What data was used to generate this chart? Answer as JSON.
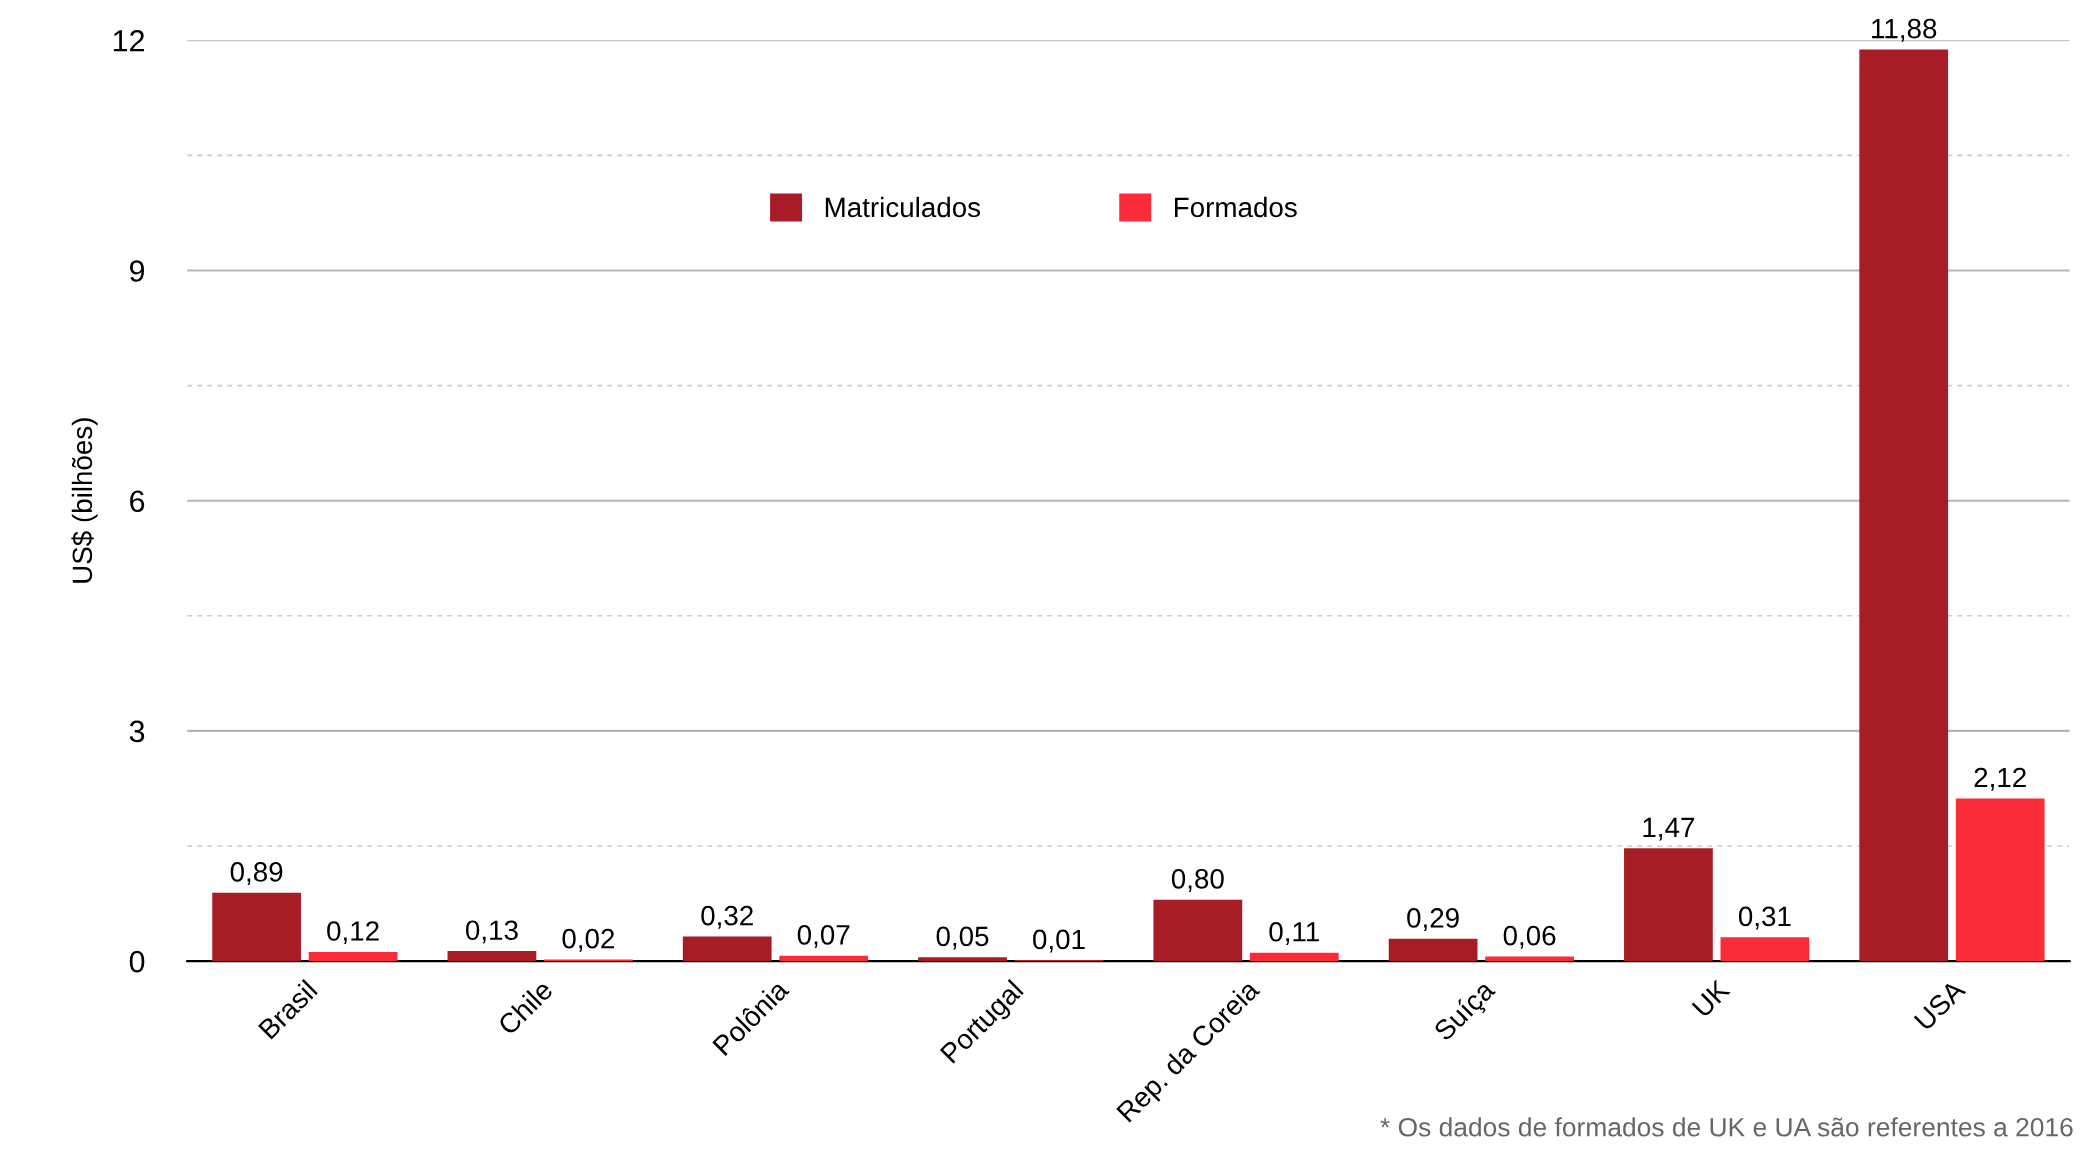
{
  "chart_data": {
    "type": "bar",
    "ylabel": "US$ (bilhões)",
    "categories": [
      "Brasil",
      "Chile",
      "Polônia",
      "Portugal",
      "Rep. da Coreia",
      "Suíça",
      "UK",
      "USA"
    ],
    "series": [
      {
        "name": "Matriculados",
        "color": "#a71d26",
        "values": [
          0.89,
          0.13,
          0.32,
          0.05,
          0.8,
          0.29,
          1.47,
          11.88
        ],
        "value_labels": [
          "0,89",
          "0,13",
          "0,32",
          "0,05",
          "0,80",
          "0,29",
          "1,47",
          "11,88"
        ]
      },
      {
        "name": "Formados",
        "color": "#fb2c3a",
        "values": [
          0.12,
          0.02,
          0.07,
          0.01,
          0.11,
          0.06,
          0.31,
          2.12
        ],
        "value_labels": [
          "0,12",
          "0,02",
          "0,07",
          "0,01",
          "0,11",
          "0,06",
          "0,31",
          "2,12"
        ]
      }
    ],
    "ylim": [
      0,
      12
    ],
    "yticks": [
      0,
      {
        "value": 1.5,
        "label": null
      },
      3,
      {
        "value": 4.5,
        "label": null
      },
      6,
      {
        "value": 7.5,
        "label": null
      },
      9,
      {
        "value": 10.5,
        "label": null
      },
      12
    ],
    "grid": "y",
    "legend": "top",
    "annotations": [
      "* Os dados de formados de UK e UA são referentes a 2016"
    ]
  }
}
